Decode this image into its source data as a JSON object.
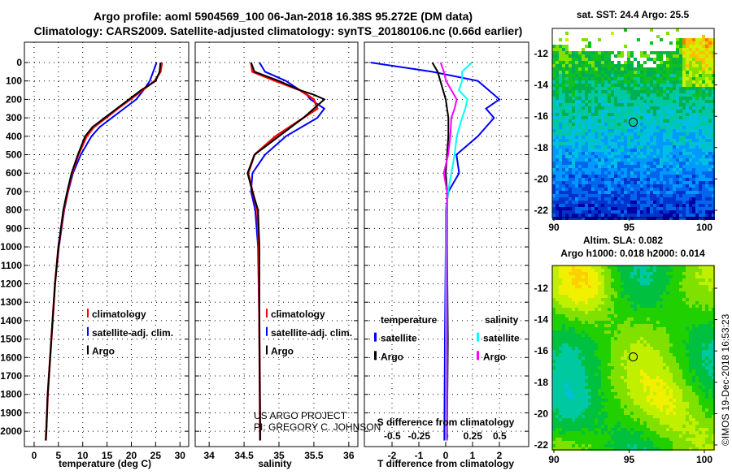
{
  "title": {
    "line1": "Argo profile: aoml 5904569_100 06-Jan-2018 16.38S 95.272E (DM data)",
    "line2": "Climatology: CARS2009. Satellite-adjusted climatology: synTS_20180106.nc (0.66d earlier)"
  },
  "credit": "US ARGO PROJECT",
  "pi": "PI: GREGORY C. JOHNSON",
  "stamp": "©IMOS 19-Dec-2018 16:53:23",
  "colors": {
    "climatology": "#ff0000",
    "satellite": "#0000ff",
    "argo": "#000000",
    "sal_sat": "#00ffff",
    "sal_argo": "#ff00ff"
  },
  "chart_data": [
    {
      "type": "line",
      "name": "temperature",
      "xlabel": "temperature (deg C)",
      "xlim": [
        -2,
        31.8
      ],
      "ylim": [
        2083,
        -110
      ],
      "xticks": [
        "0",
        "5",
        "10",
        "15",
        "20",
        "25",
        "30"
      ],
      "xtickvals": [
        0,
        5,
        10,
        15,
        20,
        25,
        30
      ],
      "yticks": [
        "0",
        "100",
        "200",
        "300",
        "400",
        "500",
        "600",
        "700",
        "800",
        "900",
        "1000",
        "1100",
        "1200",
        "1300",
        "1400",
        "1500",
        "1600",
        "1700",
        "1800",
        "1900",
        "2000"
      ],
      "legend": [
        "climatology",
        "satellite-adj. clim.",
        "Argo"
      ],
      "depth": [
        0,
        50,
        100,
        150,
        200,
        250,
        300,
        350,
        400,
        500,
        600,
        700,
        800,
        1000,
        1200,
        1400,
        1600,
        1800,
        2000,
        2050
      ],
      "series": [
        {
          "name": "climatology",
          "values": [
            26.3,
            26,
            24.8,
            22.3,
            19.8,
            17.2,
            14.8,
            12.3,
            10.8,
            9.1,
            7.8,
            6.9,
            6.1,
            5.0,
            4.3,
            3.8,
            3.3,
            2.8,
            2.5,
            2.4
          ]
        },
        {
          "name": "satellite-adj. clim.",
          "values": [
            25.2,
            24.5,
            23.8,
            22.5,
            21,
            18.5,
            16,
            13.5,
            11.8,
            9.6,
            8,
            7,
            6.2,
            5.1,
            4.3,
            3.8,
            3.3,
            2.8,
            2.5,
            2.4
          ]
        },
        {
          "name": "Argo",
          "values": [
            26,
            25.8,
            25,
            22,
            19.5,
            17,
            14.5,
            12,
            10.5,
            9,
            7.7,
            6.8,
            6,
            5,
            4.3,
            3.8,
            3.3,
            2.8,
            2.5,
            2.4
          ]
        }
      ]
    },
    {
      "type": "line",
      "name": "salinity",
      "xlabel": "salinity",
      "xlim": [
        33.8,
        36.13
      ],
      "xticks": [
        "34",
        "34.5",
        "35",
        "35.5",
        "36"
      ],
      "xtickvals": [
        34,
        34.5,
        35,
        35.5,
        36
      ],
      "legend": [
        "climatology",
        "satellite-adj. clim.",
        "Argo"
      ],
      "depth": [
        0,
        50,
        100,
        150,
        175,
        200,
        250,
        300,
        400,
        500,
        600,
        700,
        800,
        1000,
        1500,
        2000,
        2050
      ],
      "series": [
        {
          "name": "climatology",
          "values": [
            34.6,
            34.62,
            34.95,
            35.3,
            35.4,
            35.5,
            35.55,
            35.35,
            34.95,
            34.65,
            34.56,
            34.62,
            34.69,
            34.71,
            34.72,
            34.73,
            34.73
          ]
        },
        {
          "name": "satellite-adj. clim.",
          "values": [
            34.72,
            34.8,
            35.1,
            35.3,
            35.4,
            35.45,
            35.65,
            35.55,
            35.1,
            34.8,
            34.62,
            34.6,
            34.66,
            34.7,
            34.72,
            34.73,
            34.73
          ]
        },
        {
          "name": "Argo",
          "values": [
            34.6,
            34.65,
            35.0,
            35.3,
            35.5,
            35.65,
            35.5,
            35.35,
            35.0,
            34.65,
            34.55,
            34.62,
            34.7,
            34.72,
            34.72,
            34.73,
            34.73
          ]
        }
      ]
    },
    {
      "type": "line",
      "name": "difference",
      "xlabel": "T difference from climatology",
      "x2label": "S difference from climatology",
      "xlim": [
        -3.03,
        3.09
      ],
      "x2lim": [
        -0.76,
        0.77
      ],
      "xticks": [
        "-2",
        "-1",
        "0",
        "1",
        "2"
      ],
      "xtickvals": [
        -2,
        -1,
        0,
        1,
        2
      ],
      "x2ticks": [
        "-0.5",
        "-0.25",
        "0",
        "0.25",
        "0.5"
      ],
      "x2tickvals": [
        -0.5,
        -0.25,
        0,
        0.25,
        0.5
      ],
      "legend": {
        "temperature": "temperature",
        "salinity": "salinity",
        "satellite": "satellite",
        "argo": "Argo"
      },
      "depth": [
        0,
        50,
        100,
        150,
        200,
        250,
        300,
        400,
        500,
        600,
        700,
        800,
        1000,
        1500,
        2000,
        2050
      ],
      "series": [
        {
          "name": "T satellite",
          "axis": "T",
          "values": [
            -2.8,
            -0.5,
            1.2,
            1.6,
            2.0,
            1.5,
            1.8,
            1.2,
            0.4,
            0.5,
            0.1,
            0,
            0,
            -0.03,
            -0.05,
            -0.05
          ]
        },
        {
          "name": "T Argo",
          "axis": "T",
          "values": [
            -0.5,
            -0.3,
            -0.2,
            -0.1,
            0,
            0.05,
            0.1,
            0.1,
            0.05,
            0,
            0.05,
            0.05,
            0.05,
            0.08,
            0.05,
            0.05
          ]
        },
        {
          "name": "S satellite",
          "axis": "S",
          "values": [
            0.24,
            0.15,
            0.15,
            0.12,
            0.2,
            0.18,
            0.15,
            0.1,
            0.08,
            0.05,
            0.02,
            0,
            0,
            0,
            0,
            0
          ]
        },
        {
          "name": "S Argo",
          "axis": "S",
          "values": [
            -0.05,
            -0.02,
            0,
            0.05,
            0.1,
            0.08,
            0.05,
            0.04,
            0.02,
            -0.02,
            0.01,
            0.01,
            0.01,
            0.01,
            0.01,
            0.01
          ]
        }
      ]
    },
    {
      "type": "heatmap",
      "name": "sst-map",
      "title": "sat. SST: 24.4 Argo: 25.5",
      "xticks": [
        "90",
        "95",
        "100"
      ],
      "yticks": [
        "-12",
        "-14",
        "-16",
        "-18",
        "-20",
        "-22"
      ],
      "float_lon": 95.272,
      "float_lat": -16.38
    },
    {
      "type": "heatmap",
      "name": "sla-map",
      "title1": "Altim. SLA: 0.082",
      "title2": "Argo h1000: 0.018 h2000: 0.014",
      "xticks": [
        "90",
        "95",
        "100"
      ],
      "yticks": [
        "-12",
        "-14",
        "-16",
        "-18",
        "-20",
        "-22"
      ],
      "float_lon": 95.272,
      "float_lat": -16.38
    }
  ]
}
